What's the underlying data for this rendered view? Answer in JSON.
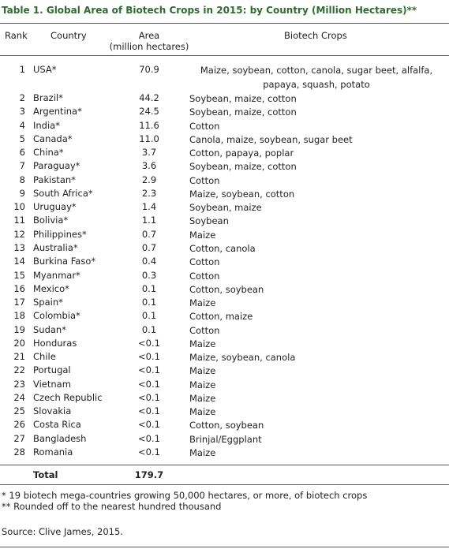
{
  "header": {
    "title": "Table 1.  Global Area of Biotech Crops in 2015: by Country (Million Hectares)**"
  },
  "table": {
    "columns": [
      "Rank",
      "Country",
      "Area",
      "Biotech Crops"
    ],
    "columns_sub": [
      null,
      null,
      "(million hectares)",
      null
    ],
    "rows": [
      [
        1,
        "USA*",
        "70.9",
        "Maize, soybean, cotton, canola, sugar beet, alfalfa, papaya, squash, potato"
      ],
      [
        2,
        "Brazil*",
        "44.2",
        "Soybean, maize, cotton"
      ],
      [
        3,
        "Argentina*",
        "24.5",
        "Soybean, maize, cotton"
      ],
      [
        4,
        "India*",
        "11.6",
        "Cotton"
      ],
      [
        5,
        "Canada*",
        "11.0",
        "Canola, maize, soybean, sugar beet"
      ],
      [
        6,
        "China*",
        "3.7",
        "Cotton, papaya, poplar"
      ],
      [
        7,
        "Paraguay*",
        "3.6",
        "Soybean, maize, cotton"
      ],
      [
        8,
        "Pakistan*",
        "2.9",
        "Cotton"
      ],
      [
        9,
        "South Africa*",
        "2.3",
        "Maize, soybean, cotton"
      ],
      [
        10,
        "Uruguay*",
        "1.4",
        "Soybean, maize"
      ],
      [
        11,
        "Bolivia*",
        "1.1",
        "Soybean"
      ],
      [
        12,
        "Philippines*",
        "0.7",
        "Maize"
      ],
      [
        13,
        "Australia*",
        "0.7",
        "Cotton, canola"
      ],
      [
        14,
        "Burkina Faso*",
        "0.4",
        "Cotton"
      ],
      [
        15,
        "Myanmar*",
        "0.3",
        "Cotton"
      ],
      [
        16,
        "Mexico*",
        "0.1",
        "Cotton, soybean"
      ],
      [
        17,
        "Spain*",
        "0.1",
        "Maize"
      ],
      [
        18,
        "Colombia*",
        "0.1",
        "Cotton, maize"
      ],
      [
        19,
        "Sudan*",
        "0.1",
        "Cotton"
      ],
      [
        20,
        "Honduras",
        "<0.1",
        "Maize"
      ],
      [
        21,
        "Chile",
        "<0.1",
        "Maize, soybean, canola"
      ],
      [
        22,
        "Portugal",
        "<0.1",
        "Maize"
      ],
      [
        23,
        "Vietnam",
        "<0.1",
        "Maize"
      ],
      [
        24,
        "Czech Republic",
        "<0.1",
        "Maize"
      ],
      [
        25,
        "Slovakia",
        "<0.1",
        "Maize"
      ],
      [
        26,
        "Costa Rica",
        "<0.1",
        "Cotton, soybean"
      ],
      [
        27,
        "Bangladesh",
        "<0.1",
        "Brinjal/Eggplant"
      ],
      [
        28,
        "Romania",
        "<0.1",
        "Maize"
      ]
    ],
    "total": {
      "label": "Total",
      "area": "179.7"
    }
  },
  "footnotes": [
    "* 19 biotech mega-countries growing 50,000 hectares, or more, of biotech crops",
    "** Rounded off to the nearest hundred thousand"
  ],
  "source": "Source: Clive James, 2015."
}
